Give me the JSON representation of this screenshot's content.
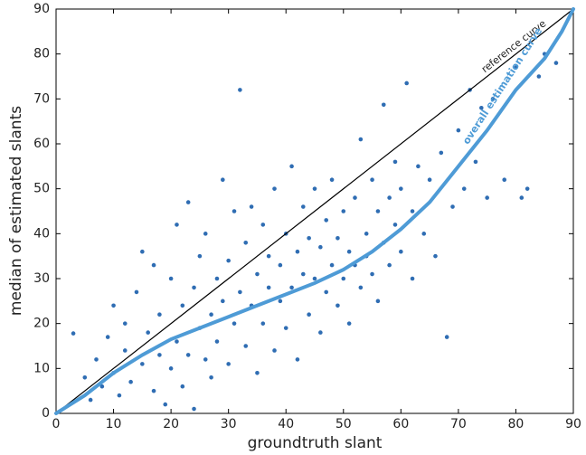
{
  "chart_data": {
    "type": "scatter",
    "xlabel": "groundtruth slant",
    "ylabel": "median of estimated slants",
    "xlim": [
      0,
      90
    ],
    "ylim": [
      0,
      90
    ],
    "xticks": [
      0,
      10,
      20,
      30,
      40,
      50,
      60,
      70,
      80,
      90
    ],
    "yticks": [
      0,
      10,
      20,
      30,
      40,
      50,
      60,
      70,
      80,
      90
    ],
    "series": [
      {
        "type": "points",
        "color": "#2f6db3",
        "x": [
          3,
          5,
          6,
          7,
          8,
          9,
          10,
          10,
          11,
          12,
          12,
          13,
          14,
          15,
          15,
          16,
          17,
          17,
          18,
          18,
          19,
          20,
          20,
          21,
          21,
          22,
          22,
          23,
          23,
          24,
          24,
          25,
          25,
          26,
          26,
          27,
          27,
          28,
          28,
          29,
          29,
          30,
          30,
          31,
          31,
          32,
          32,
          33,
          33,
          34,
          34,
          35,
          35,
          36,
          36,
          37,
          37,
          38,
          38,
          39,
          39,
          40,
          40,
          41,
          41,
          42,
          42,
          43,
          43,
          44,
          44,
          45,
          45,
          46,
          46,
          47,
          47,
          48,
          48,
          49,
          49,
          50,
          50,
          51,
          51,
          52,
          52,
          53,
          53,
          54,
          54,
          55,
          55,
          56,
          56,
          57,
          57,
          58,
          58,
          59,
          59,
          60,
          60,
          61,
          62,
          62,
          63,
          64,
          65,
          66,
          67,
          68,
          69,
          70,
          71,
          72,
          73,
          74,
          75,
          76,
          78,
          80,
          81,
          82,
          84,
          85,
          87
        ],
        "values": [
          17.8,
          8,
          3,
          12,
          6,
          17,
          24,
          9,
          4,
          14,
          20,
          7,
          27,
          36,
          11,
          18,
          5,
          33,
          22,
          13,
          2,
          30,
          10,
          16,
          42,
          24,
          6,
          13,
          47,
          28,
          1,
          19,
          35,
          12,
          40,
          22,
          8,
          30,
          16,
          52,
          25,
          11,
          34,
          20,
          45,
          72,
          27,
          15,
          38,
          24,
          46,
          31,
          9,
          20,
          42,
          28,
          35,
          14,
          50,
          25,
          33,
          40,
          19,
          55,
          28,
          36,
          12,
          31,
          46,
          22,
          39,
          30,
          50,
          18,
          37,
          43,
          27,
          33,
          52,
          24,
          39,
          45,
          30,
          36,
          20,
          48,
          33,
          61,
          28,
          40,
          35,
          31,
          52,
          45,
          25,
          68.7,
          38,
          33,
          48,
          42,
          56,
          36,
          50,
          73.5,
          45,
          30,
          55,
          40,
          52,
          35,
          58,
          17,
          46,
          63,
          50,
          72,
          56,
          68,
          48,
          70,
          52,
          77,
          48,
          50,
          75,
          80,
          78
        ]
      },
      {
        "type": "line",
        "name": "reference curve",
        "color": "#000000",
        "x": [
          0,
          90
        ],
        "values": [
          0,
          90
        ]
      },
      {
        "type": "line",
        "name": "overall estimation curve",
        "color": "#4e9bd6",
        "x": [
          0,
          5,
          10,
          15,
          20,
          25,
          30,
          35,
          40,
          45,
          50,
          55,
          60,
          65,
          70,
          75,
          80,
          85,
          88,
          90
        ],
        "values": [
          0,
          4,
          9,
          13,
          16.5,
          19,
          21.5,
          24,
          26.5,
          29,
          32,
          36,
          41,
          47,
          55,
          63,
          72,
          79,
          85,
          90
        ]
      }
    ]
  }
}
